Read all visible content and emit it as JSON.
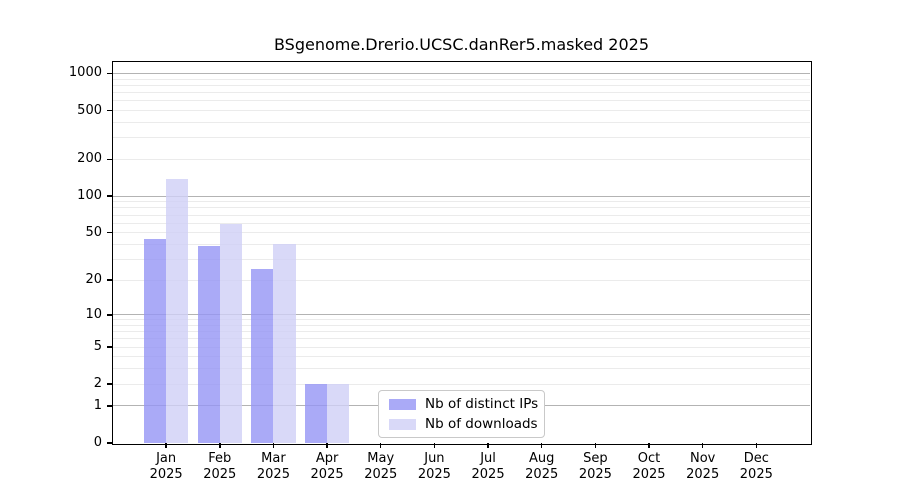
{
  "chart_data": {
    "type": "bar",
    "title": "BSgenome.Drerio.UCSC.danRer5.masked 2025",
    "categories": [
      "Jan",
      "Feb",
      "Mar",
      "Apr",
      "May",
      "Jun",
      "Jul",
      "Aug",
      "Sep",
      "Oct",
      "Nov",
      "Dec"
    ],
    "year_label": "2025",
    "series": [
      {
        "name": "Nb of distinct IPs",
        "color": "#9595f5cc",
        "values": [
          44,
          39,
          25,
          2,
          0,
          0,
          0,
          0,
          0,
          0,
          0,
          0
        ]
      },
      {
        "name": "Nb of downloads",
        "color": "#d0d0f6cc",
        "values": [
          137,
          59,
          40,
          2,
          0,
          0,
          0,
          0,
          0,
          0,
          0,
          0
        ]
      }
    ],
    "y_axis": {
      "scale": "log1p",
      "ticks": [
        0,
        1,
        2,
        5,
        10,
        20,
        50,
        100,
        200,
        500,
        1000
      ],
      "ylim": [
        0,
        1240
      ]
    },
    "x_axis": {
      "xlim": [
        -0.99,
        12.0
      ]
    },
    "grid": {
      "major_color": "#b3b3b3",
      "minor_color": "#ebebeb",
      "major_at": [
        1,
        10,
        100,
        1000
      ]
    },
    "legend": {
      "position": "lower center",
      "items": [
        "Nb of distinct IPs",
        "Nb of downloads"
      ]
    }
  }
}
